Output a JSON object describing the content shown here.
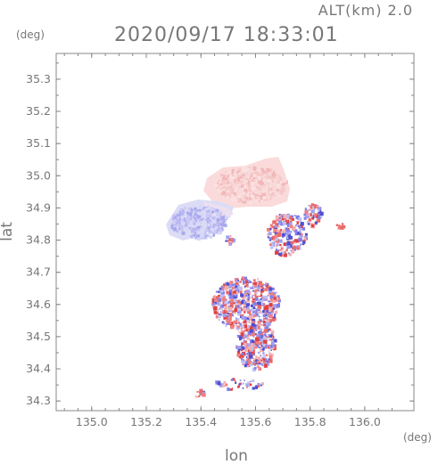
{
  "header": {
    "altitude_label": "ALT(km) 2.0",
    "timestamp": "2020/09/17 18:33:01"
  },
  "axes": {
    "x_label": "lon",
    "y_label": "lat",
    "x_unit": "(deg)",
    "y_unit": "(deg)",
    "x_range": [
      134.87,
      136.18
    ],
    "y_range": [
      34.27,
      35.38
    ],
    "x_ticks": [
      "135.0",
      "135.2",
      "135.4",
      "135.6",
      "135.8",
      "136.0"
    ],
    "y_ticks": [
      "35.3",
      "35.2",
      "35.1",
      "35.0",
      "34.9",
      "34.8",
      "34.7",
      "34.6",
      "34.5",
      "34.4",
      "34.3"
    ]
  },
  "map": {
    "frame_color": "#888888",
    "positive_color": "#f0a0a0",
    "negative_color": "#a0a0f0",
    "neutral_color": "#f8e8e8"
  }
}
